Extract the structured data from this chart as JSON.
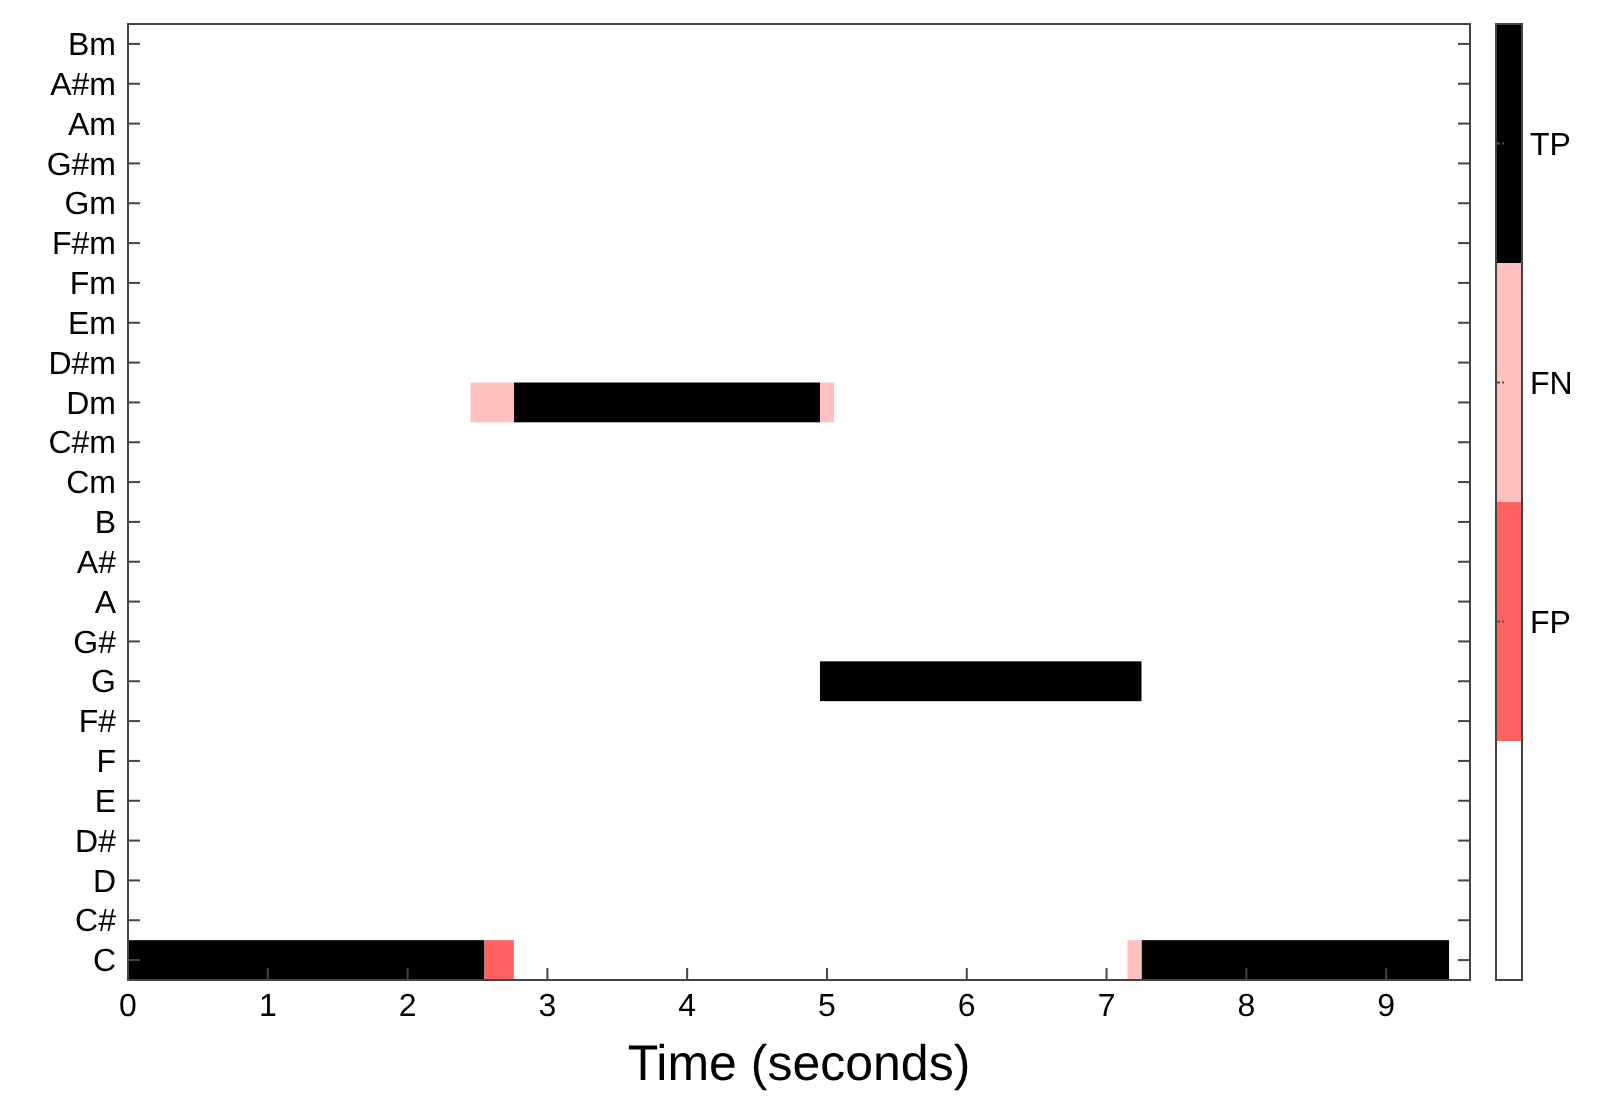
{
  "chart_data": {
    "type": "bar",
    "orientation": "horizontal",
    "xlabel": "Time (seconds)",
    "categories": [
      "Bm",
      "A#m",
      "Am",
      "G#m",
      "Gm",
      "F#m",
      "Fm",
      "Em",
      "D#m",
      "Dm",
      "C#m",
      "Cm",
      "B",
      "A#",
      "A",
      "G#",
      "G",
      "F#",
      "F",
      "E",
      "D#",
      "D",
      "C#",
      "C"
    ],
    "xlim": [
      0,
      9.6
    ],
    "xticks": [
      0,
      1,
      2,
      3,
      4,
      5,
      6,
      7,
      8,
      9
    ],
    "grid": false,
    "legend": "right",
    "series": [
      {
        "name": "TP",
        "color": "#000000",
        "base": [
          null,
          null,
          null,
          null,
          null,
          null,
          null,
          null,
          null,
          2.76,
          null,
          null,
          null,
          null,
          null,
          null,
          4.95,
          null,
          null,
          null,
          null,
          null,
          null,
          0
        ],
        "values": [
          null,
          null,
          null,
          null,
          null,
          null,
          null,
          null,
          null,
          2.19,
          null,
          null,
          null,
          null,
          null,
          null,
          2.3,
          null,
          null,
          null,
          null,
          null,
          null,
          2.55
        ]
      },
      {
        "color": "#000000",
        "base": [
          null,
          null,
          null,
          null,
          null,
          null,
          null,
          null,
          null,
          null,
          null,
          null,
          null,
          null,
          null,
          null,
          null,
          null,
          null,
          null,
          null,
          null,
          null,
          7.25
        ],
        "values": [
          null,
          null,
          null,
          null,
          null,
          null,
          null,
          null,
          null,
          null,
          null,
          null,
          null,
          null,
          null,
          null,
          null,
          null,
          null,
          null,
          null,
          null,
          null,
          2.2
        ]
      },
      {
        "name": "FN",
        "color": "#ffc0c0",
        "base": [
          null,
          null,
          null,
          null,
          null,
          null,
          null,
          null,
          null,
          2.45,
          null,
          null,
          null,
          null,
          null,
          null,
          null,
          null,
          null,
          null,
          null,
          null,
          null,
          7.15
        ],
        "values": [
          null,
          null,
          null,
          null,
          null,
          null,
          null,
          null,
          null,
          0.31,
          null,
          null,
          null,
          null,
          null,
          null,
          null,
          null,
          null,
          null,
          null,
          null,
          null,
          0.1
        ]
      },
      {
        "color": "#ffc0c0",
        "base": [
          null,
          null,
          null,
          null,
          null,
          null,
          null,
          null,
          null,
          4.95,
          null,
          null,
          null,
          null,
          null,
          null,
          null,
          null,
          null,
          null,
          null,
          null,
          null,
          null
        ],
        "values": [
          null,
          null,
          null,
          null,
          null,
          null,
          null,
          null,
          null,
          0.1,
          null,
          null,
          null,
          null,
          null,
          null,
          null,
          null,
          null,
          null,
          null,
          null,
          null,
          null
        ]
      },
      {
        "name": "FP",
        "color": "#ff6060",
        "base": [
          null,
          null,
          null,
          null,
          null,
          null,
          null,
          null,
          null,
          null,
          null,
          null,
          null,
          null,
          null,
          null,
          null,
          null,
          null,
          null,
          null,
          null,
          null,
          2.55
        ],
        "values": [
          null,
          null,
          null,
          null,
          null,
          null,
          null,
          null,
          null,
          null,
          null,
          null,
          null,
          null,
          null,
          null,
          null,
          null,
          null,
          null,
          null,
          null,
          null,
          0.21
        ]
      }
    ]
  }
}
